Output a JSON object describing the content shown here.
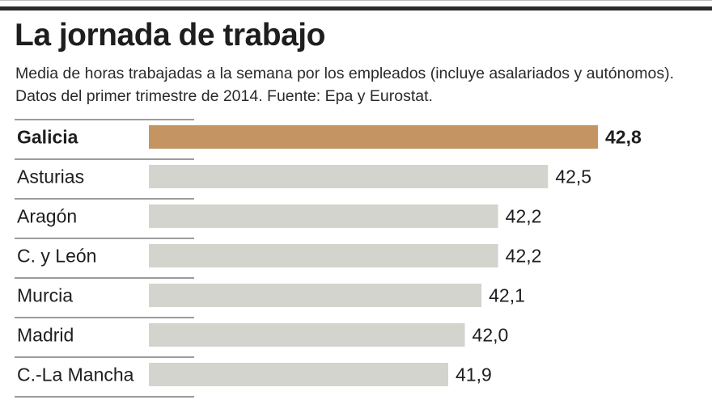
{
  "header": {
    "title": "La jornada de trabajo",
    "subtitle_line1": "Media de horas trabajadas a la semana por los empleados (incluye asalariados y autónomos).",
    "subtitle_line2": "Datos del primer trimestre de 2014. Fuente: Epa y Eurostat."
  },
  "colors": {
    "highlight": "#c49563",
    "bar": "#d4d4cf",
    "rule": "#3a3a3a"
  },
  "chart_data": {
    "type": "bar",
    "orientation": "horizontal",
    "title": "La jornada de trabajo",
    "xlabel": "",
    "ylabel": "",
    "categories": [
      "Galicia",
      "Asturias",
      "Aragón",
      "C. y León",
      "Murcia",
      "Madrid",
      "C.-La Mancha"
    ],
    "values": [
      42.8,
      42.5,
      42.2,
      42.2,
      42.1,
      42.0,
      41.9
    ],
    "value_labels": [
      "42,8",
      "42,5",
      "42,2",
      "42,2",
      "42,1",
      "42,0",
      "41,9"
    ],
    "highlight_index": 0,
    "xlim": [
      40.1,
      42.8
    ],
    "grid": false
  }
}
